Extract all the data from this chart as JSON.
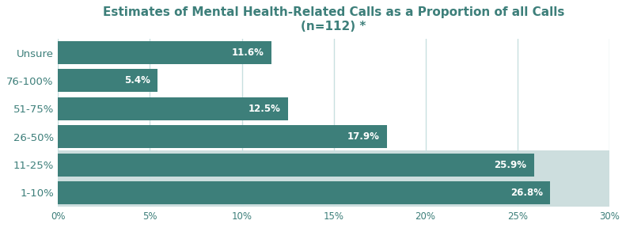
{
  "title_line1": "Estimates of Mental Health-Related Calls as a Proportion of all Calls",
  "title_line2": "(n=112) *",
  "categories": [
    "Unsure",
    "76-100%",
    "51-75%",
    "26-50%",
    "11-25%",
    "1-10%"
  ],
  "values": [
    11.6,
    5.4,
    12.5,
    17.9,
    25.9,
    26.8
  ],
  "labels": [
    "11.6%",
    "5.4%",
    "12.5%",
    "17.9%",
    "25.9%",
    "26.8%"
  ],
  "bar_color": "#3d7f7a",
  "highlight_bg": "#cddede",
  "highlight_rows": [
    4,
    5
  ],
  "xlim": [
    0,
    30
  ],
  "xticks": [
    0,
    5,
    10,
    15,
    20,
    25,
    30
  ],
  "xtick_labels": [
    "0%",
    "5%",
    "10%",
    "15%",
    "20%",
    "25%",
    "30%"
  ],
  "label_fontsize": 8.5,
  "title_fontsize": 11,
  "ylabel_fontsize": 9.5,
  "background_color": "#ffffff",
  "grid_color": "#c8e0e0",
  "bar_label_color": "#ffffff",
  "bar_height": 0.82,
  "ytext_color": "#3d7f7a",
  "xtext_color": "#3d7f7a"
}
